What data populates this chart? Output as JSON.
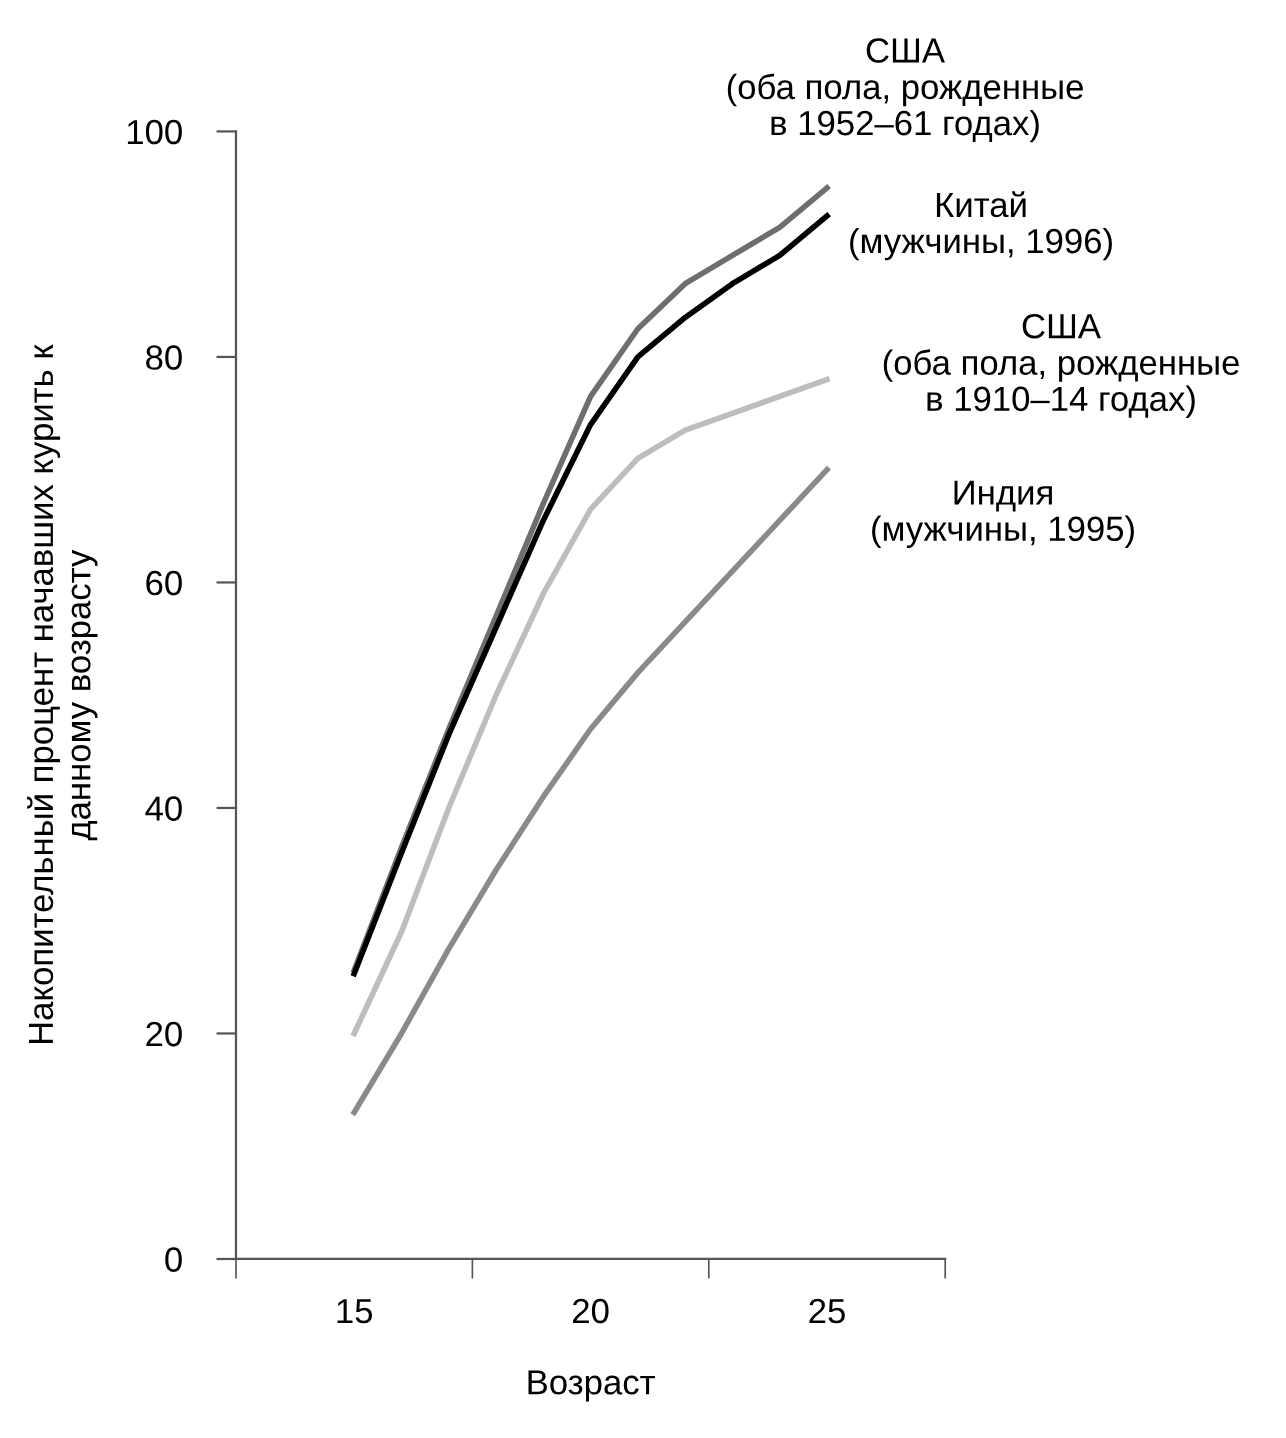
{
  "chart_data": {
    "type": "line",
    "xlabel": "Возраст",
    "ylabel": "Накопительный процент начавших курить к\nданному возрасту",
    "x": [
      15,
      16,
      17,
      18,
      19,
      20,
      21,
      22,
      23,
      24,
      25
    ],
    "xlim": [
      12.5,
      27.5
    ],
    "xticks": [
      {
        "value": 12.5,
        "label": null
      },
      15,
      {
        "value": 17.5,
        "label": null
      },
      20,
      {
        "value": 22.5,
        "label": null
      },
      25,
      {
        "value": 27.5,
        "label": null
      }
    ],
    "ylim": [
      0,
      100
    ],
    "yticks": [
      0,
      20,
      40,
      60,
      80,
      100
    ],
    "grid": false,
    "legend": false,
    "marker": "none",
    "line_style": "solid",
    "series": [
      {
        "name": "США\n(оба пола, рожденные\nв 1952–61 годах)",
        "color": "#6e6e6e",
        "values": [
          25.6,
          36.5,
          47,
          57,
          67,
          76.5,
          82.5,
          86.5,
          89,
          91.5,
          95
        ]
      },
      {
        "name": "Китай\n(мужчины, 1996)",
        "color": "#000000",
        "values": [
          25.3,
          36,
          46.5,
          56,
          65.5,
          74,
          80,
          83.5,
          86.5,
          89,
          92.5
        ]
      },
      {
        "name": "США\n(оба пола, рожденные\nв 1910–14 годах)",
        "color": "#bdbdbd",
        "values": [
          20,
          29,
          40,
          50,
          59,
          66.5,
          71,
          73.5,
          75,
          76.5,
          78
        ]
      },
      {
        "name": "Индия\n(мужчины, 1995)",
        "color": "#8a8a8a",
        "values": [
          13,
          20,
          27.5,
          34.5,
          41,
          47,
          52,
          56.5,
          61,
          65.5,
          70
        ]
      }
    ]
  }
}
